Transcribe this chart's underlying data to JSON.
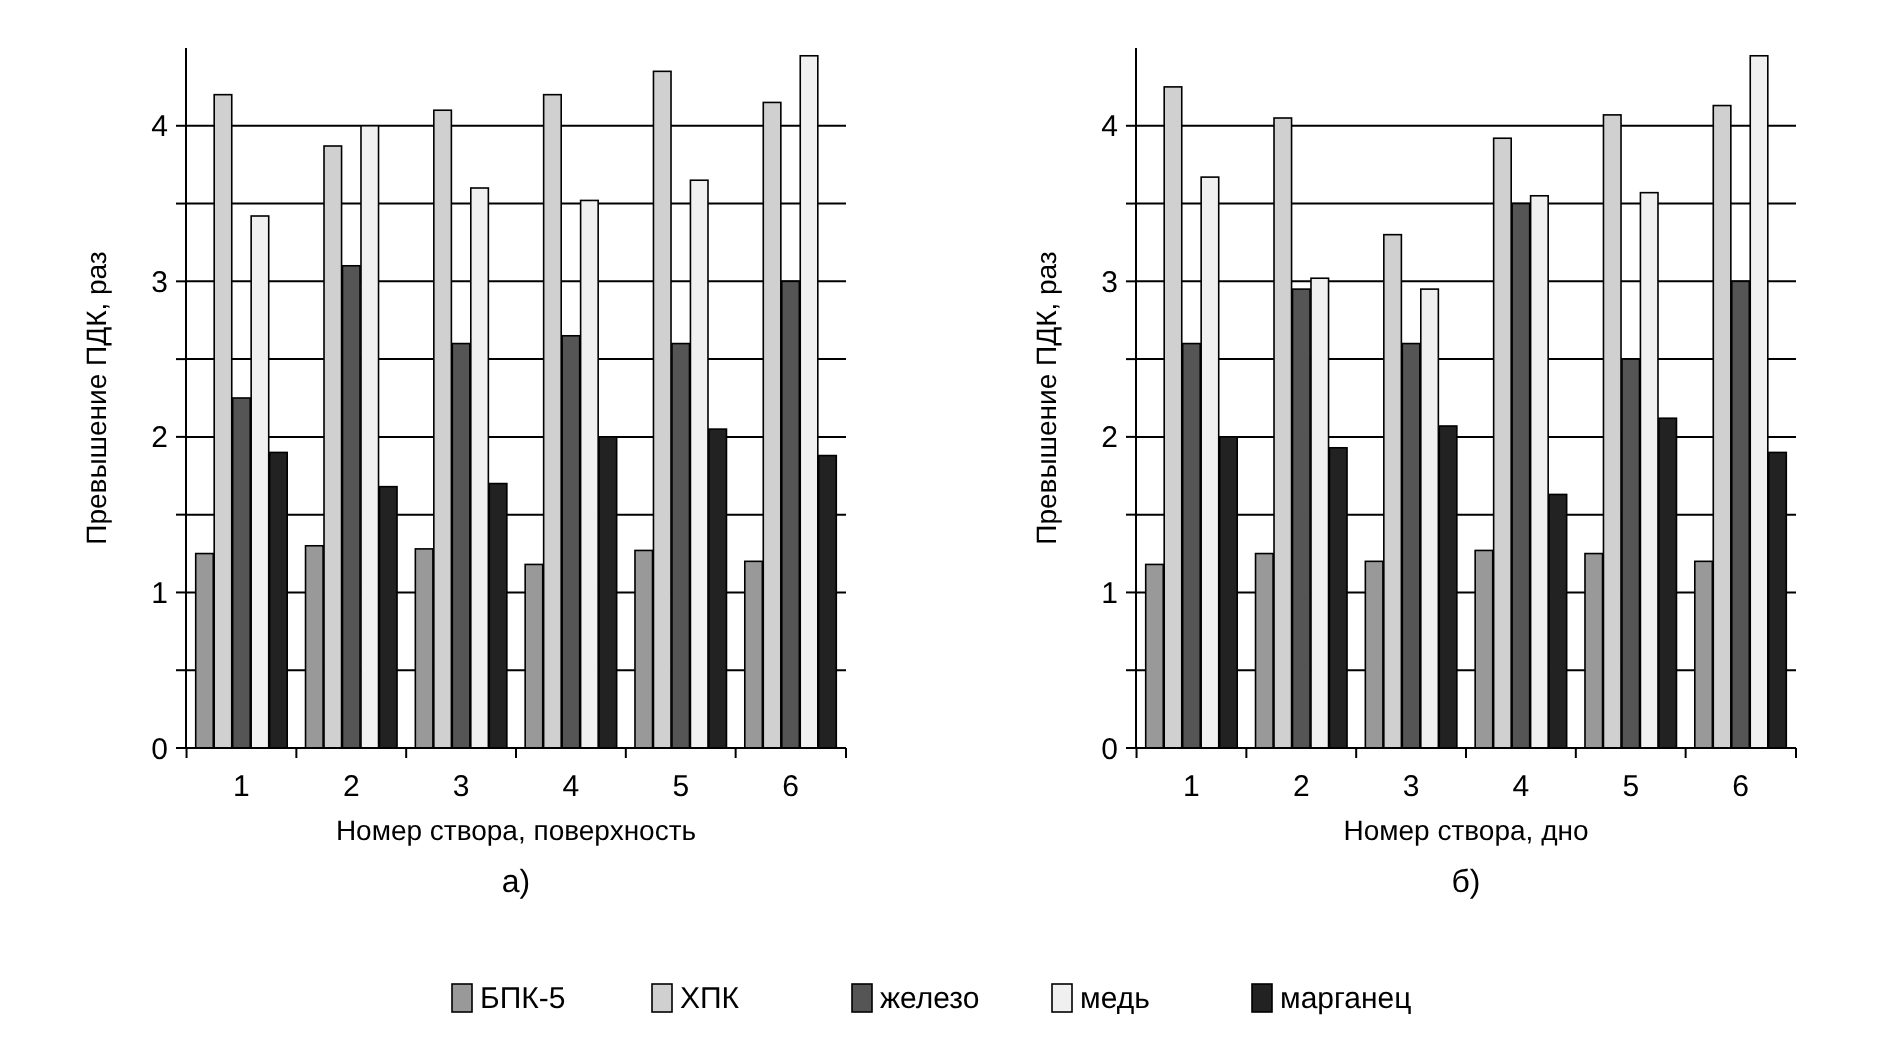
{
  "chart_data": [
    {
      "type": "bar",
      "xlabel": "Номер створа, поверхность",
      "ylabel": "Превышение ПДК, раз",
      "annotations": [
        "а)"
      ],
      "categories": [
        "1",
        "2",
        "3",
        "4",
        "5",
        "6"
      ],
      "ylim": [
        0,
        4.5
      ],
      "yticks": [
        0,
        {
          "value": 0.5,
          "label": null
        },
        1,
        {
          "value": 1.5,
          "label": null
        },
        2,
        {
          "value": 2.5,
          "label": null
        },
        3,
        {
          "value": 3.5,
          "label": null
        },
        4
      ],
      "grid": "y",
      "legend": "bottom",
      "series": [
        {
          "name": "БПК-5",
          "color": "#999999",
          "values": [
            1.25,
            1.3,
            1.28,
            1.18,
            1.27,
            1.2
          ]
        },
        {
          "name": "ХПК",
          "color": "#d0d0d0",
          "values": [
            4.2,
            3.87,
            4.1,
            4.2,
            4.35,
            4.15
          ]
        },
        {
          "name": "железо",
          "color": "#555555",
          "values": [
            2.25,
            3.1,
            2.6,
            2.65,
            2.6,
            3.0
          ]
        },
        {
          "name": "медь",
          "color": "#f0f0f0",
          "values": [
            3.42,
            4.0,
            3.6,
            3.52,
            3.65,
            4.45
          ]
        },
        {
          "name": "марганец",
          "color": "#222222",
          "values": [
            1.9,
            1.68,
            1.7,
            2.0,
            2.05,
            1.88
          ]
        }
      ]
    },
    {
      "type": "bar",
      "xlabel": "Номер створа, дно",
      "ylabel": "Превышение ПДК, раз",
      "annotations": [
        "б)"
      ],
      "categories": [
        "1",
        "2",
        "3",
        "4",
        "5",
        "6"
      ],
      "ylim": [
        0,
        4.5
      ],
      "yticks": [
        0,
        {
          "value": 0.5,
          "label": null
        },
        1,
        {
          "value": 1.5,
          "label": null
        },
        2,
        {
          "value": 2.5,
          "label": null
        },
        3,
        {
          "value": 3.5,
          "label": null
        },
        4
      ],
      "grid": "y",
      "series": [
        {
          "color": "#999999",
          "values": [
            1.18,
            1.25,
            1.2,
            1.27,
            1.25,
            1.2
          ]
        },
        {
          "color": "#d0d0d0",
          "values": [
            4.25,
            4.05,
            3.3,
            3.92,
            4.07,
            4.13
          ]
        },
        {
          "color": "#555555",
          "values": [
            2.6,
            2.95,
            2.6,
            3.5,
            2.5,
            3.0
          ]
        },
        {
          "color": "#f0f0f0",
          "values": [
            3.67,
            3.02,
            2.95,
            3.55,
            3.57,
            4.45
          ]
        },
        {
          "color": "#222222",
          "values": [
            2.0,
            1.93,
            2.07,
            1.63,
            2.12,
            1.9
          ]
        }
      ]
    }
  ]
}
